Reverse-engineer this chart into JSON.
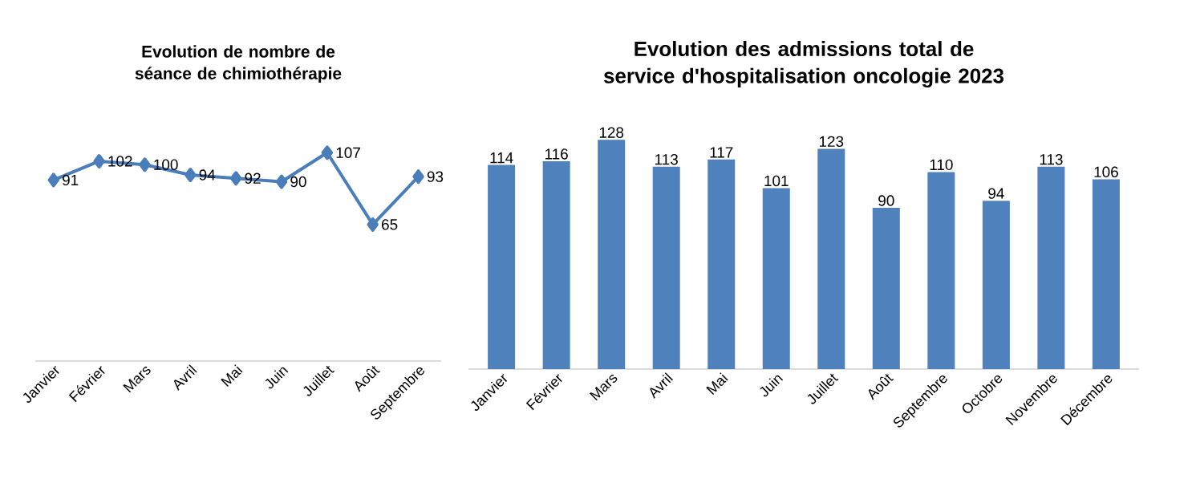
{
  "chart_data": [
    {
      "type": "line",
      "title": "Evolution de nombre de séance de chimiothérapie",
      "categories": [
        "Janvier",
        "Février",
        "Mars",
        "Avril",
        "Mai",
        "Juin",
        "Juillet",
        "Août",
        "Septembre"
      ],
      "values": [
        91,
        102,
        100,
        94,
        92,
        90,
        107,
        65,
        93
      ],
      "color": "#4a7ebb",
      "marker": "diamond",
      "data_labels": true
    },
    {
      "type": "bar",
      "title": "Evolution des admissions total de service d'hospitalisation oncologie 2023",
      "categories": [
        "Janvier",
        "Février",
        "Mars",
        "Avril",
        "Mai",
        "Juin",
        "Juillet",
        "Août",
        "Septembre",
        "Octobre",
        "Novembre",
        "Décembre"
      ],
      "values": [
        114,
        116,
        128,
        113,
        117,
        101,
        123,
        90,
        110,
        94,
        113,
        106
      ],
      "color": "#4f81bd",
      "data_labels": true
    }
  ]
}
